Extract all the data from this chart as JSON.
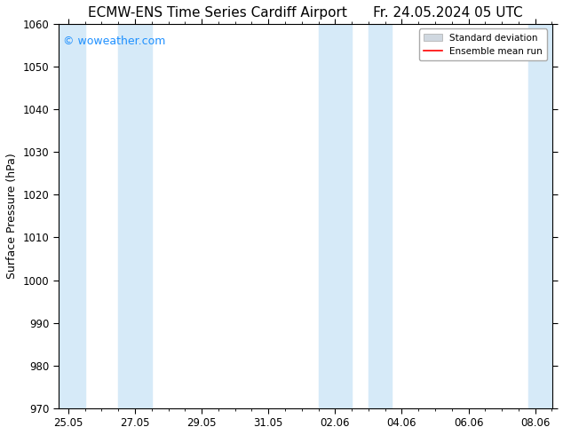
{
  "title_left": "ECMW-ENS Time Series Cardiff Airport",
  "title_right": "Fr. 24.05.2024 05 UTC",
  "ylabel": "Surface Pressure (hPa)",
  "ylim": [
    970,
    1060
  ],
  "yticks": [
    970,
    980,
    990,
    1000,
    1010,
    1020,
    1030,
    1040,
    1050,
    1060
  ],
  "xtick_labels": [
    "25.05",
    "27.05",
    "29.05",
    "31.05",
    "02.06",
    "04.06",
    "06.06",
    "08.06"
  ],
  "xtick_positions": [
    0,
    2,
    4,
    6,
    8,
    10,
    12,
    14
  ],
  "x_min": -0.3,
  "x_max": 14.5,
  "shaded_bands": [
    {
      "x_start": -0.3,
      "x_end": 0.5
    },
    {
      "x_start": 1.5,
      "x_end": 2.5
    },
    {
      "x_start": 7.5,
      "x_end": 8.5
    },
    {
      "x_start": 9.0,
      "x_end": 9.7
    },
    {
      "x_start": 13.8,
      "x_end": 14.5
    }
  ],
  "shade_color": "#d6eaf8",
  "background_color": "#ffffff",
  "plot_bg_color": "#ffffff",
  "watermark_text": "© woweather.com",
  "watermark_color": "#1e90ff",
  "legend_std_color": "#d0d8e0",
  "legend_std_edge_color": "#aaaaaa",
  "legend_mean_color": "#ff0000",
  "title_fontsize": 11,
  "tick_fontsize": 8.5,
  "ylabel_fontsize": 9,
  "watermark_fontsize": 9,
  "legend_fontsize": 7.5
}
